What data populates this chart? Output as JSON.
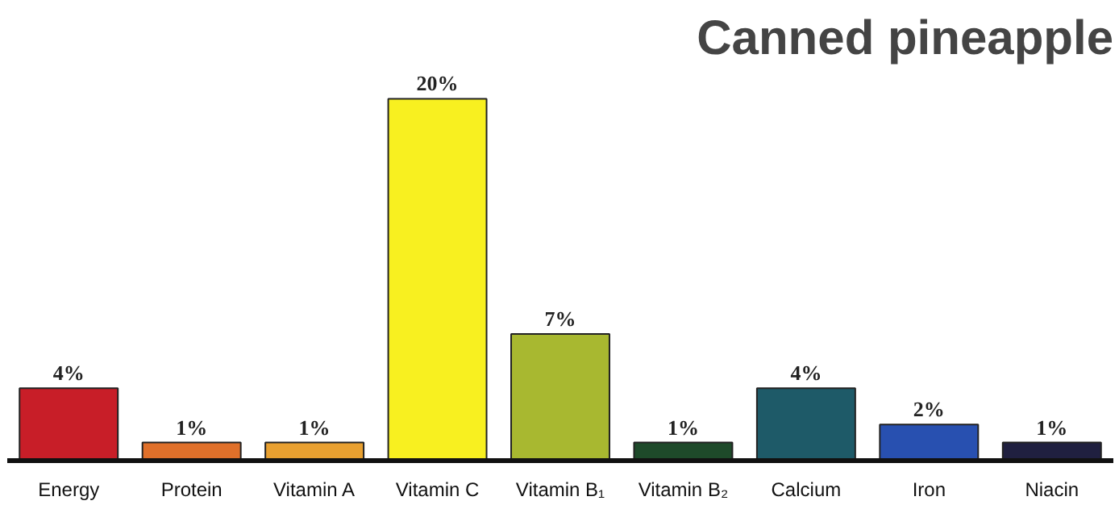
{
  "chart_data": {
    "type": "bar",
    "title": "Canned pineapple",
    "categories": [
      "Energy",
      "Protein",
      "Vitamin A",
      "Vitamin C",
      "Vitamin B₁",
      "Vitamin B₂",
      "Calcium",
      "Iron",
      "Niacin"
    ],
    "values": [
      4,
      1,
      1,
      20,
      7,
      1,
      4,
      2,
      1
    ],
    "colors": [
      "#c81e28",
      "#e0702a",
      "#e8a030",
      "#f8f020",
      "#a8b830",
      "#1e4a2a",
      "#1e5a68",
      "#2850b0",
      "#202040"
    ],
    "data_labels": true,
    "value_labels": [
      "4%",
      "1%",
      "1%",
      "20%",
      "7%",
      "1%",
      "4%",
      "2%",
      "1%"
    ],
    "grid": false
  }
}
